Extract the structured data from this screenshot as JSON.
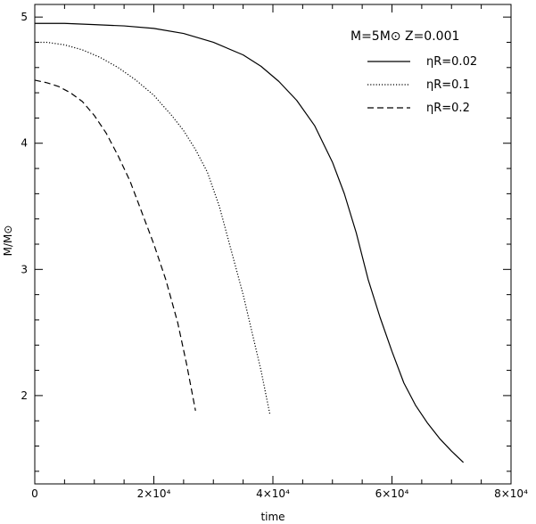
{
  "chart_data": {
    "type": "line",
    "title": "",
    "xlabel": "time",
    "ylabel": "M/M⊙",
    "xlim": [
      0,
      80000
    ],
    "ylim": [
      1.3,
      5.1
    ],
    "xticks": [
      {
        "value": 0,
        "label": "0"
      },
      {
        "value": 20000,
        "label": "2×10⁴"
      },
      {
        "value": 40000,
        "label": "4×10⁴"
      },
      {
        "value": 60000,
        "label": "6×10⁴"
      },
      {
        "value": 80000,
        "label": "8×10⁴"
      }
    ],
    "yticks": [
      {
        "value": 2,
        "label": "2"
      },
      {
        "value": 3,
        "label": "3"
      },
      {
        "value": 4,
        "label": "4"
      },
      {
        "value": 5,
        "label": "5"
      }
    ],
    "legend": {
      "placement": "top-right",
      "title": "M=5M⊙   Z=0.001"
    },
    "series": [
      {
        "name": "ηR=0.02",
        "dash": "solid",
        "x": [
          0,
          5000,
          10000,
          15000,
          20000,
          25000,
          30000,
          35000,
          38000,
          41000,
          44000,
          47000,
          50000,
          52000,
          54000,
          56000,
          58000,
          60000,
          62000,
          64000,
          66000,
          68000,
          70000,
          72000
        ],
        "y": [
          4.95,
          4.95,
          4.94,
          4.93,
          4.91,
          4.87,
          4.8,
          4.7,
          4.61,
          4.49,
          4.34,
          4.14,
          3.85,
          3.6,
          3.29,
          2.92,
          2.62,
          2.35,
          2.1,
          1.92,
          1.78,
          1.66,
          1.56,
          1.47
        ]
      },
      {
        "name": "ηR=0.1",
        "dash": "dotted",
        "x": [
          0,
          2000,
          5000,
          8000,
          11000,
          14000,
          17000,
          20000,
          23000,
          25000,
          27000,
          29000,
          31000,
          33000,
          35000,
          36500,
          38000,
          39500
        ],
        "y": [
          4.8,
          4.8,
          4.78,
          4.74,
          4.68,
          4.6,
          4.5,
          4.38,
          4.22,
          4.1,
          3.95,
          3.77,
          3.5,
          3.15,
          2.8,
          2.5,
          2.2,
          1.85
        ]
      },
      {
        "name": "ηR=0.2",
        "dash": "dashed",
        "x": [
          0,
          2000,
          4000,
          6000,
          8000,
          10000,
          12000,
          14000,
          16000,
          18000,
          20000,
          22000,
          24000,
          25500,
          27000
        ],
        "y": [
          4.5,
          4.48,
          4.45,
          4.4,
          4.33,
          4.22,
          4.08,
          3.9,
          3.7,
          3.45,
          3.2,
          2.92,
          2.58,
          2.25,
          1.88
        ]
      }
    ]
  }
}
